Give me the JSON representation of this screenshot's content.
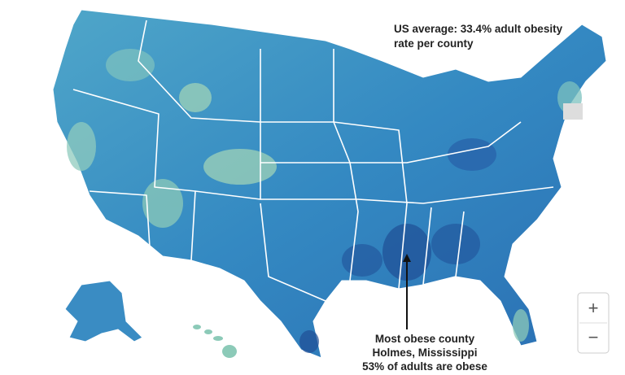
{
  "annotations": [
    {
      "lines": [
        "US average: 33.4% adult obesity",
        "rate per county"
      ]
    },
    {
      "lines": [
        "Most obese county",
        "Holmes, Mississippi",
        "53% of adults are obese"
      ]
    }
  ],
  "zoom_controls": [
    "+",
    "−"
  ]
}
